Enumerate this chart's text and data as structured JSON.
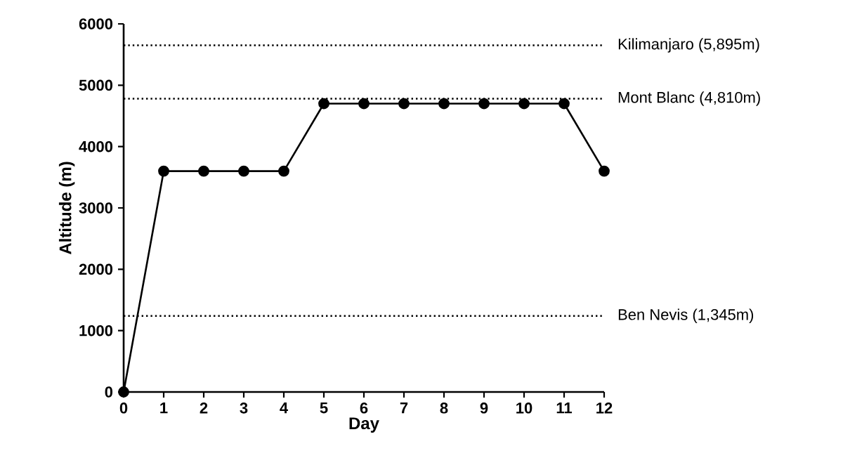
{
  "chart_data": {
    "type": "line",
    "xlabel": "Day",
    "ylabel": "Altitude (m)",
    "x": [
      0,
      1,
      2,
      3,
      4,
      5,
      6,
      7,
      8,
      9,
      10,
      11,
      12
    ],
    "values": [
      0,
      3600,
      3600,
      3600,
      3600,
      4700,
      4700,
      4700,
      4700,
      4700,
      4700,
      4700,
      3600
    ],
    "color": "#000000",
    "marker": "circle",
    "line_style": "solid",
    "grid": false,
    "xlim": [
      0,
      12
    ],
    "xticks": [
      0,
      1,
      2,
      3,
      4,
      5,
      6,
      7,
      8,
      9,
      10,
      11,
      12
    ],
    "ylim": [
      0,
      6000
    ],
    "yticks": [
      0,
      1000,
      2000,
      3000,
      4000,
      5000,
      6000
    ],
    "ref_lines": [
      {
        "axis": "y",
        "value": 5650,
        "label": "Kilimanjaro (5,895m)",
        "color": "#000000",
        "line_style": "dotted"
      },
      {
        "axis": "y",
        "value": 4780,
        "label": "Mont Blanc (4,810m)",
        "color": "#000000",
        "line_style": "dotted"
      },
      {
        "axis": "y",
        "value": 1240,
        "label": "Ben Nevis (1,345m)",
        "color": "#000000",
        "line_style": "dotted"
      }
    ]
  }
}
